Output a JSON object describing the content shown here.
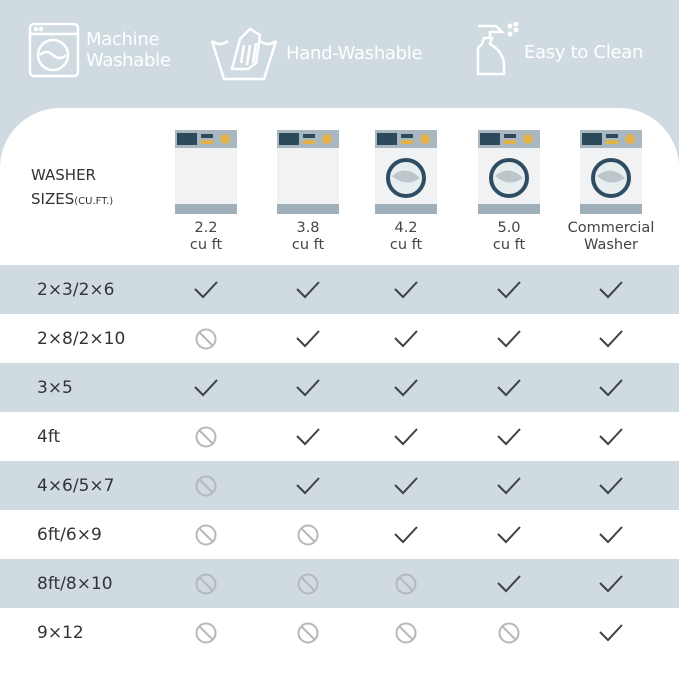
{
  "features": [
    {
      "icon": "washing-machine-icon",
      "label": [
        "Machine",
        "Washable"
      ]
    },
    {
      "icon": "hand-wash-icon",
      "label": [
        "Hand-Washable"
      ]
    },
    {
      "icon": "spray-bottle-icon",
      "label": [
        "Easy to Clean"
      ]
    }
  ],
  "table": {
    "header_label": "WASHER",
    "header_label2": "SIZES",
    "header_unit": "(CU.FT.)",
    "columns": [
      {
        "line1": "2.2",
        "line2": "cu ft",
        "drum": false
      },
      {
        "line1": "3.8",
        "line2": "cu ft",
        "drum": false
      },
      {
        "line1": "4.2",
        "line2": "cu ft",
        "drum": true
      },
      {
        "line1": "5.0",
        "line2": "cu ft",
        "drum": true
      },
      {
        "line1": "Commercial",
        "line2": "Washer",
        "drum": true
      }
    ],
    "rows": [
      {
        "size": "2×3/2×6",
        "fit": [
          true,
          true,
          true,
          true,
          true
        ]
      },
      {
        "size": "2×8/2×10",
        "fit": [
          false,
          true,
          true,
          true,
          true
        ]
      },
      {
        "size": "3×5",
        "fit": [
          true,
          true,
          true,
          true,
          true
        ]
      },
      {
        "size": "4ft",
        "fit": [
          false,
          true,
          true,
          true,
          true
        ]
      },
      {
        "size": "4×6/5×7",
        "fit": [
          false,
          true,
          true,
          true,
          true
        ]
      },
      {
        "size": "6ft/6×9",
        "fit": [
          false,
          false,
          true,
          true,
          true
        ]
      },
      {
        "size": "8ft/8×10",
        "fit": [
          false,
          false,
          false,
          true,
          true
        ]
      },
      {
        "size": "9×12",
        "fit": [
          false,
          false,
          false,
          false,
          true
        ]
      }
    ]
  },
  "colors": {
    "background": "#cfdbe0",
    "check": "#3d4246",
    "no": "#b4b9bc"
  }
}
